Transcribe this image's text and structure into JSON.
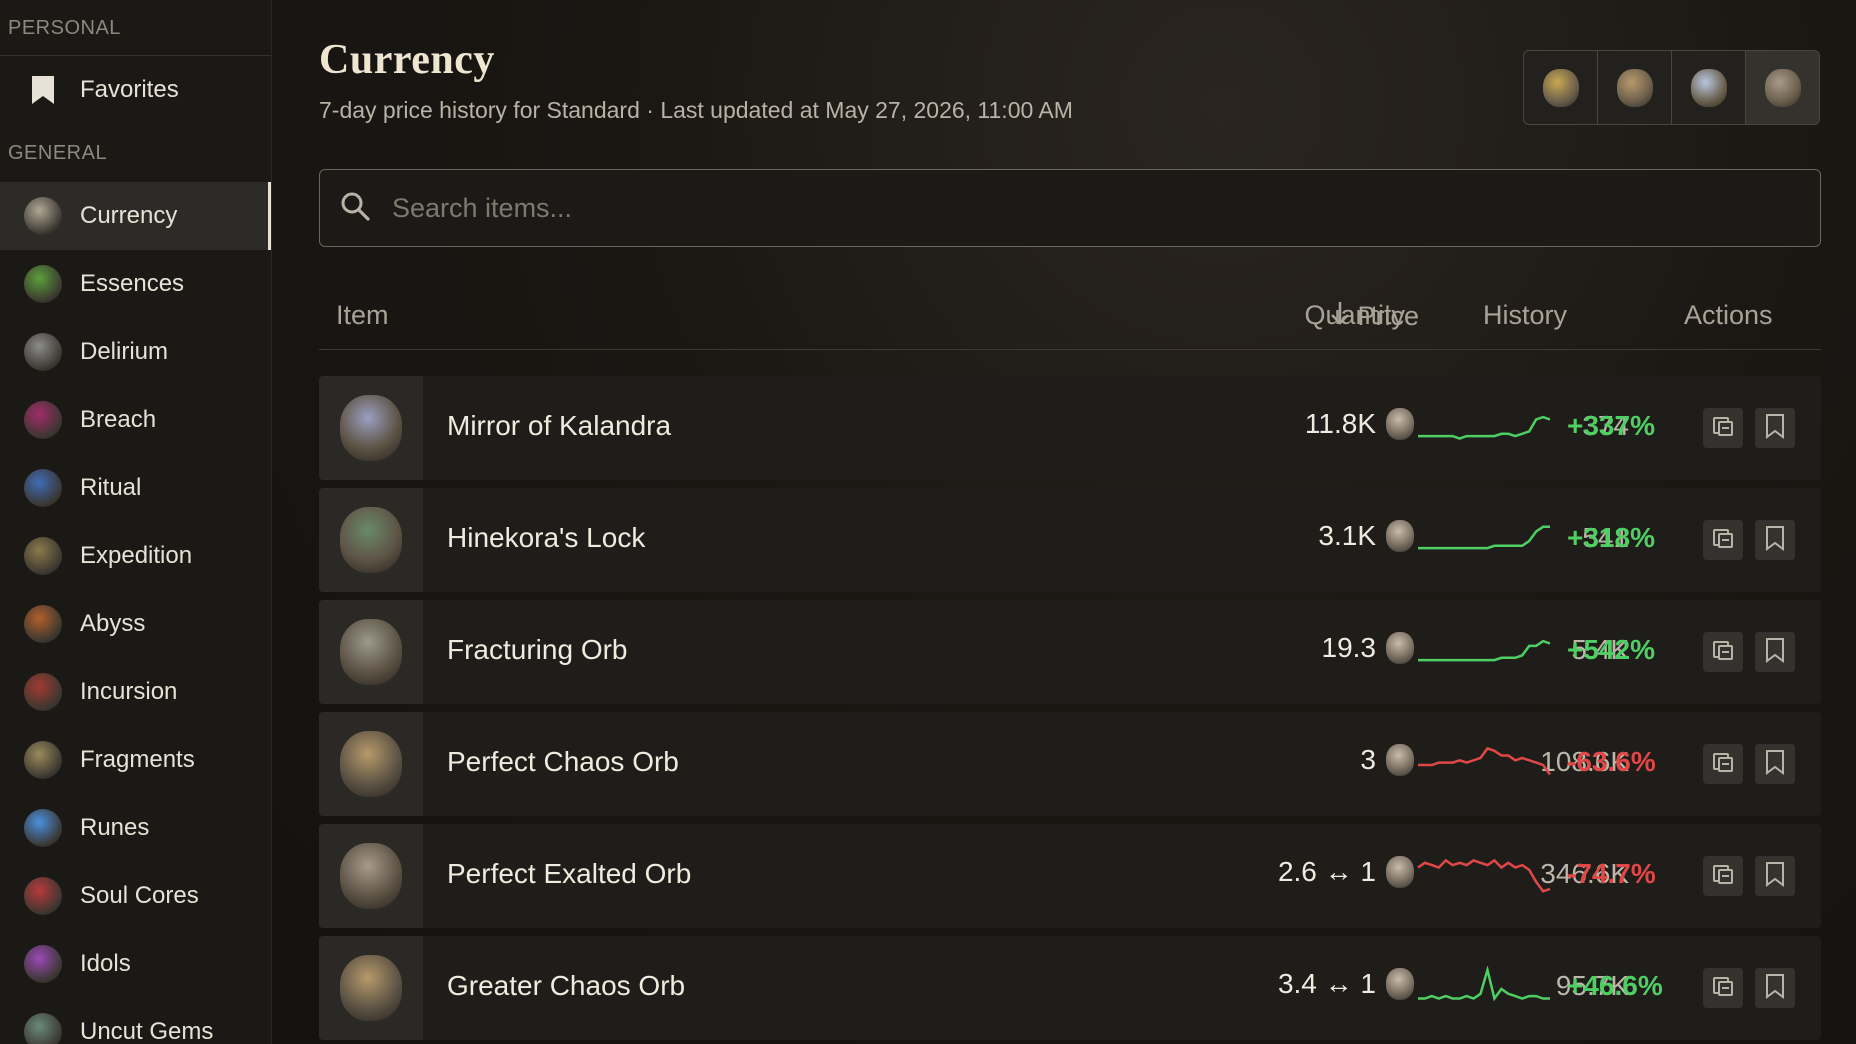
{
  "sidebar": {
    "personal_label": "PERSONAL",
    "favorites_label": "Favorites",
    "general_label": "GENERAL",
    "items": [
      {
        "label": "Currency",
        "icon": "currency-icon",
        "color": "#b0a896",
        "active": true
      },
      {
        "label": "Essences",
        "icon": "essences-icon",
        "color": "#5aa03a"
      },
      {
        "label": "Delirium",
        "icon": "delirium-icon",
        "color": "#8c8c8c"
      },
      {
        "label": "Breach",
        "icon": "breach-icon",
        "color": "#a22c6a"
      },
      {
        "label": "Ritual",
        "icon": "ritual-icon",
        "color": "#3f6db5"
      },
      {
        "label": "Expedition",
        "icon": "expedition-icon",
        "color": "#8a7a4a"
      },
      {
        "label": "Abyss",
        "icon": "abyss-icon",
        "color": "#b0602a"
      },
      {
        "label": "Incursion",
        "icon": "incursion-icon",
        "color": "#a13a30"
      },
      {
        "label": "Fragments",
        "icon": "fragments-icon",
        "color": "#9a8a5a"
      },
      {
        "label": "Runes",
        "icon": "runes-icon",
        "color": "#4a90e0"
      },
      {
        "label": "Soul Cores",
        "icon": "soul-cores-icon",
        "color": "#b83a3a"
      },
      {
        "label": "Idols",
        "icon": "idols-icon",
        "color": "#9a4ab8"
      },
      {
        "label": "Uncut Gems",
        "icon": "uncut-gems-icon",
        "color": "#6a8a7a"
      }
    ]
  },
  "header": {
    "title": "Currency",
    "subtitle": "7-day price history for Standard · Last updated at May 27, 2026, 11:00 AM"
  },
  "league_buttons": [
    {
      "name": "league-option-1",
      "icon": "gold-orb-icon",
      "color": "#c9a850"
    },
    {
      "name": "league-option-2",
      "icon": "chaos-mask-icon",
      "color": "#b89a6a"
    },
    {
      "name": "league-option-3",
      "icon": "divine-orb-icon",
      "color": "#b8c8e0"
    },
    {
      "name": "league-option-4",
      "icon": "exalted-orb-icon",
      "color": "#a89a8a"
    }
  ],
  "search": {
    "placeholder": "Search items..."
  },
  "table": {
    "headers": {
      "item": "Item",
      "price": "Price",
      "quantity": "Quantity",
      "history": "History",
      "actions": "Actions"
    },
    "rows": [
      {
        "name": "Mirror of Kalandra",
        "price": "11.8K",
        "quantity": "374",
        "change": "+337%",
        "trend": "up",
        "history": [
          5,
          5,
          5,
          5,
          5,
          5,
          4,
          5,
          5,
          5,
          5,
          5,
          6,
          6,
          5,
          6,
          7,
          12,
          13,
          12
        ],
        "thumb_color": "#9aa0c0"
      },
      {
        "name": "Hinekora's Lock",
        "price": "3.1K",
        "quantity": "541",
        "change": "+318%",
        "trend": "up",
        "history": [
          5,
          5,
          5,
          5,
          5,
          5,
          5,
          5,
          5,
          5,
          5,
          6,
          6,
          6,
          6,
          6,
          8,
          12,
          14,
          14
        ],
        "thumb_color": "#6a8a6a"
      },
      {
        "name": "Fracturing Orb",
        "price": "19.3",
        "quantity": "5.4K",
        "change": "+542%",
        "trend": "up",
        "history": [
          5,
          5,
          5,
          5,
          5,
          5,
          5,
          5,
          5,
          5,
          5,
          5,
          6,
          6,
          6,
          7,
          11,
          11,
          13,
          12
        ],
        "thumb_color": "#9a9a8a"
      },
      {
        "name": "Perfect Chaos Orb",
        "price": "3",
        "quantity": "108.6K",
        "change": "-63.6%",
        "trend": "down",
        "history": [
          8,
          8,
          8,
          9,
          9,
          9,
          10,
          9,
          10,
          11,
          15,
          14,
          12,
          12,
          10,
          11,
          10,
          9,
          8,
          4
        ],
        "thumb_color": "#b89a6a"
      },
      {
        "name": "Perfect Exalted Orb",
        "price": "2.6 ↔ 1",
        "quantity": "346.6K",
        "change": "-74.7%",
        "trend": "down",
        "history": [
          12,
          14,
          13,
          12,
          15,
          13,
          14,
          13,
          15,
          14,
          13,
          15,
          12,
          14,
          12,
          13,
          11,
          6,
          2,
          3
        ],
        "thumb_color": "#a89a8a"
      },
      {
        "name": "Greater Chaos Orb",
        "price": "3.4 ↔ 1",
        "quantity": "95.7K",
        "change": "+46.6%",
        "trend": "up",
        "history": [
          4,
          4,
          5,
          4,
          5,
          4,
          4,
          5,
          4,
          6,
          16,
          4,
          8,
          6,
          5,
          4,
          5,
          5,
          4,
          4
        ],
        "thumb_color": "#b89a6a"
      }
    ]
  },
  "colors": {
    "positive": "#4fcf63",
    "negative": "#e04848"
  }
}
